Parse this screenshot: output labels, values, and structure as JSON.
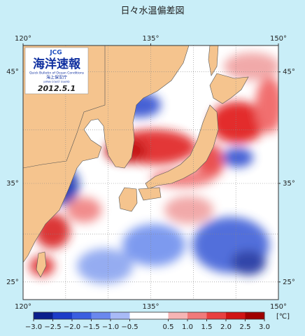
{
  "title": "日々水温偏差図",
  "logo": {
    "org": "JCG",
    "name": "海洋速報",
    "subtitle": "Quick Bulletin of Ocean Conditions",
    "agency": "海上保安庁",
    "agency_en": "JAPAN COAST GUARD",
    "date": "2012.5.1"
  },
  "map": {
    "lon_ticks": [
      {
        "value": 120,
        "label": "120°"
      },
      {
        "value": 135,
        "label": "135°"
      },
      {
        "value": 150,
        "label": "150°"
      }
    ],
    "lat_ticks": [
      {
        "value": 45,
        "label": "45°"
      },
      {
        "value": 35,
        "label": "35°"
      },
      {
        "value": 25,
        "label": "25°"
      }
    ]
  },
  "colorbar": {
    "unit": "[℃]",
    "range": [
      -3,
      3
    ],
    "colors": [
      "#0a1e8c",
      "#1c3cc8",
      "#3a5ee0",
      "#6a88ee",
      "#a8baf6",
      "#ffffff",
      "#ffffff",
      "#f6b4b4",
      "#f07a7a",
      "#e84040",
      "#d01414",
      "#a00000"
    ],
    "ticks": [
      {
        "value": -3,
        "label": "−3.0"
      },
      {
        "value": -2.5,
        "label": "−2.5"
      },
      {
        "value": -2,
        "label": "−2.0"
      },
      {
        "value": -1.5,
        "label": "−1.5"
      },
      {
        "value": -1,
        "label": "−1.0"
      },
      {
        "value": -0.5,
        "label": "−0.5"
      },
      {
        "value": 0.5,
        "label": "0.5"
      },
      {
        "value": 1,
        "label": "1.0"
      },
      {
        "value": 1.5,
        "label": "1.5"
      },
      {
        "value": 2,
        "label": "2.0"
      },
      {
        "value": 2.5,
        "label": "2.5"
      },
      {
        "value": 3,
        "label": "3.0"
      }
    ]
  }
}
